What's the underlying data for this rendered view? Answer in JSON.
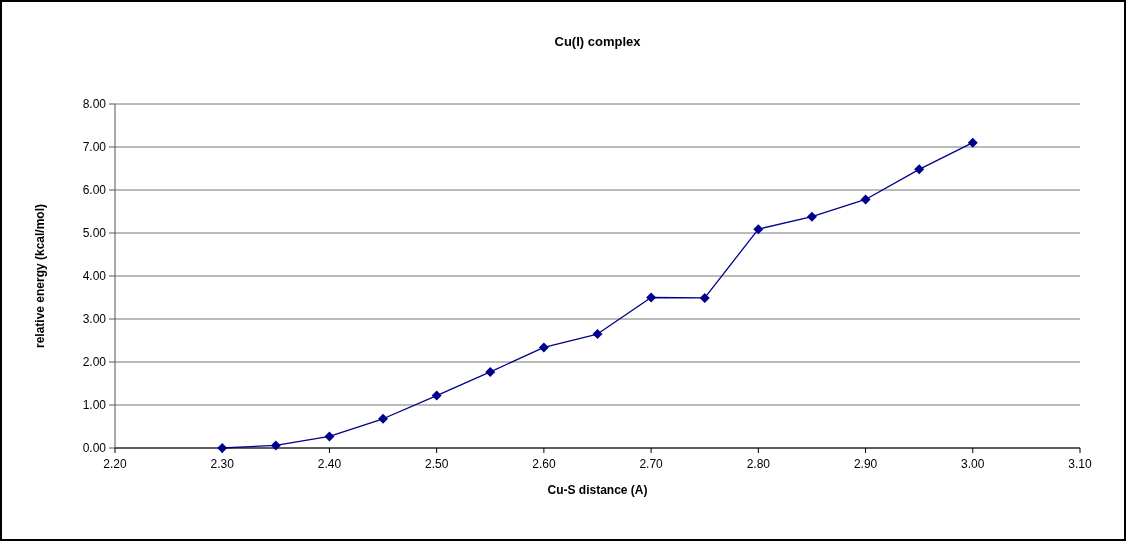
{
  "chart_data": {
    "type": "line",
    "title": "Cu(I) complex",
    "xlabel": "Cu-S distance (A)",
    "ylabel": "relative energy (kcal/mol)",
    "x": [
      2.3,
      2.35,
      2.4,
      2.45,
      2.5,
      2.55,
      2.6,
      2.65,
      2.7,
      2.75,
      2.8,
      2.85,
      2.9,
      2.95,
      3.0
    ],
    "series": [
      {
        "color": "#00008b",
        "values": [
          0,
          0.06,
          0.27,
          0.68,
          1.22,
          1.77,
          2.34,
          2.65,
          3.5,
          3.49,
          5.09,
          5.38,
          5.78,
          6.48,
          7.1
        ]
      }
    ],
    "xlim": [
      2.2,
      3.1
    ],
    "xticks": [
      {
        "value": 2.2,
        "label": "2.20"
      },
      {
        "value": 2.3,
        "label": "2.30"
      },
      {
        "value": 2.4,
        "label": "2.40"
      },
      {
        "value": 2.5,
        "label": "2.50"
      },
      {
        "value": 2.6,
        "label": "2.60"
      },
      {
        "value": 2.7,
        "label": "2.70"
      },
      {
        "value": 2.8,
        "label": "2.80"
      },
      {
        "value": 2.9,
        "label": "2.90"
      },
      {
        "value": 3.0,
        "label": "3.00"
      },
      {
        "value": 3.1,
        "label": "3.10"
      }
    ],
    "ylim": [
      0,
      8
    ],
    "yticks": [
      {
        "value": 0,
        "label": "0.00"
      },
      {
        "value": 1,
        "label": "1.00"
      },
      {
        "value": 2,
        "label": "2.00"
      },
      {
        "value": 3,
        "label": "3.00"
      },
      {
        "value": 4,
        "label": "4.00"
      },
      {
        "value": 5,
        "label": "5.00"
      },
      {
        "value": 6,
        "label": "6.00"
      },
      {
        "value": 7,
        "label": "7.00"
      },
      {
        "value": 8,
        "label": "8.00"
      }
    ],
    "grid": "y",
    "marker": "diamond",
    "line_style": "solid"
  }
}
